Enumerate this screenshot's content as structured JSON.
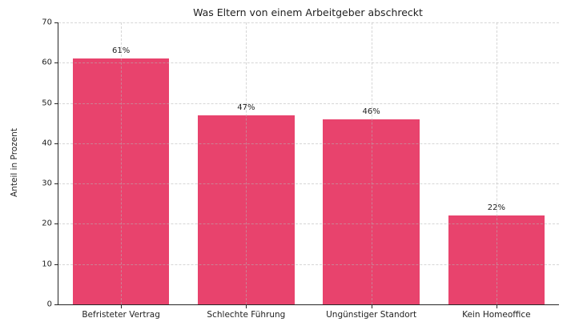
{
  "chart_data": {
    "type": "bar",
    "title": "Was Eltern von einem Arbeitgeber abschreckt",
    "ylabel": "Anteil in Prozent",
    "xlabel": "",
    "categories": [
      "Befristeter Vertrag",
      "Schlechte Führung",
      "Ungünstiger Standort",
      "Kein Homeoffice"
    ],
    "values": [
      61,
      47,
      46,
      22
    ],
    "value_labels": [
      "61%",
      "47%",
      "46%",
      "22%"
    ],
    "ylim": [
      0,
      70
    ],
    "yticks": [
      0,
      10,
      20,
      30,
      40,
      50,
      60,
      70
    ],
    "grid": "both-dashed",
    "legend": "none",
    "colors": {
      "bar": "#e8436d",
      "axis": "#262626",
      "text": "#1f1f1f",
      "grid": "#b4b4b4",
      "background": "#ffffff"
    }
  }
}
